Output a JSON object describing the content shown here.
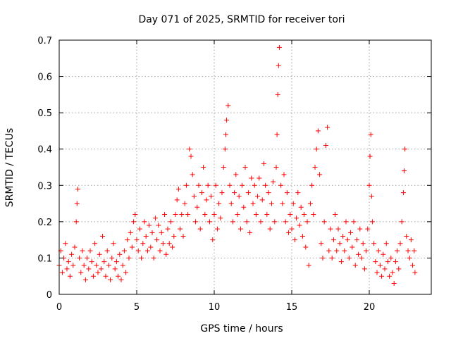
{
  "chart_data": {
    "type": "scatter",
    "title": "Day 071 of 2025, SRMTID for receiver tori",
    "xlabel": "GPS time / hours",
    "ylabel": "SRMTID / TECUs",
    "xlim": [
      0,
      24
    ],
    "ylim": [
      0,
      0.7
    ],
    "xticks": [
      0,
      5,
      10,
      15,
      20
    ],
    "yticks": [
      0,
      0.1,
      0.2,
      0.3,
      0.4,
      0.5,
      0.6,
      0.7
    ],
    "xtick_labels": [
      "0",
      "5",
      "10",
      "15",
      "20"
    ],
    "ytick_labels": [
      "0",
      "0.1",
      "0.2",
      "0.3",
      "0.4",
      "0.5",
      "0.6",
      "0.7"
    ],
    "grid": true,
    "marker": "+",
    "color": "#ff0000",
    "series": [
      {
        "name": "SRMTID",
        "points": [
          [
            0.0,
            0.08
          ],
          [
            0.1,
            0.12
          ],
          [
            0.2,
            0.06
          ],
          [
            0.3,
            0.1
          ],
          [
            0.4,
            0.14
          ],
          [
            0.5,
            0.07
          ],
          [
            0.6,
            0.09
          ],
          [
            0.7,
            0.05
          ],
          [
            0.8,
            0.11
          ],
          [
            0.9,
            0.08
          ],
          [
            1.0,
            0.13
          ],
          [
            1.1,
            0.2
          ],
          [
            1.15,
            0.25
          ],
          [
            1.2,
            0.29
          ],
          [
            1.3,
            0.1
          ],
          [
            1.4,
            0.06
          ],
          [
            1.5,
            0.12
          ],
          [
            1.6,
            0.08
          ],
          [
            1.7,
            0.04
          ],
          [
            1.8,
            0.1
          ],
          [
            1.9,
            0.07
          ],
          [
            2.0,
            0.12
          ],
          [
            2.1,
            0.09
          ],
          [
            2.2,
            0.05
          ],
          [
            2.3,
            0.14
          ],
          [
            2.4,
            0.08
          ],
          [
            2.5,
            0.06
          ],
          [
            2.6,
            0.11
          ],
          [
            2.7,
            0.07
          ],
          [
            2.8,
            0.16
          ],
          [
            2.9,
            0.09
          ],
          [
            3.0,
            0.05
          ],
          [
            3.1,
            0.12
          ],
          [
            3.2,
            0.08
          ],
          [
            3.3,
            0.04
          ],
          [
            3.4,
            0.1
          ],
          [
            3.5,
            0.14
          ],
          [
            3.6,
            0.07
          ],
          [
            3.7,
            0.09
          ],
          [
            3.8,
            0.05
          ],
          [
            3.9,
            0.11
          ],
          [
            4.0,
            0.04
          ],
          [
            4.1,
            0.08
          ],
          [
            4.2,
            0.12
          ],
          [
            4.3,
            0.06
          ],
          [
            4.4,
            0.15
          ],
          [
            4.5,
            0.1
          ],
          [
            4.6,
            0.17
          ],
          [
            4.7,
            0.13
          ],
          [
            4.8,
            0.2
          ],
          [
            4.9,
            0.22
          ],
          [
            5.0,
            0.15
          ],
          [
            5.1,
            0.12
          ],
          [
            5.2,
            0.18
          ],
          [
            5.3,
            0.1
          ],
          [
            5.4,
            0.14
          ],
          [
            5.5,
            0.2
          ],
          [
            5.6,
            0.16
          ],
          [
            5.7,
            0.12
          ],
          [
            5.8,
            0.19
          ],
          [
            5.9,
            0.13
          ],
          [
            6.0,
            0.17
          ],
          [
            6.1,
            0.1
          ],
          [
            6.2,
            0.21
          ],
          [
            6.3,
            0.15
          ],
          [
            6.4,
            0.19
          ],
          [
            6.5,
            0.12
          ],
          [
            6.6,
            0.17
          ],
          [
            6.7,
            0.14
          ],
          [
            6.8,
            0.22
          ],
          [
            6.9,
            0.11
          ],
          [
            7.0,
            0.18
          ],
          [
            7.1,
            0.14
          ],
          [
            7.2,
            0.2
          ],
          [
            7.3,
            0.13
          ],
          [
            7.4,
            0.16
          ],
          [
            7.5,
            0.22
          ],
          [
            7.6,
            0.26
          ],
          [
            7.7,
            0.29
          ],
          [
            7.8,
            0.18
          ],
          [
            7.9,
            0.22
          ],
          [
            8.0,
            0.16
          ],
          [
            8.1,
            0.25
          ],
          [
            8.2,
            0.3
          ],
          [
            8.3,
            0.22
          ],
          [
            8.4,
            0.4
          ],
          [
            8.5,
            0.38
          ],
          [
            8.6,
            0.33
          ],
          [
            8.7,
            0.27
          ],
          [
            8.8,
            0.2
          ],
          [
            8.9,
            0.24
          ],
          [
            9.0,
            0.3
          ],
          [
            9.1,
            0.18
          ],
          [
            9.2,
            0.28
          ],
          [
            9.3,
            0.35
          ],
          [
            9.4,
            0.22
          ],
          [
            9.5,
            0.26
          ],
          [
            9.6,
            0.3
          ],
          [
            9.7,
            0.2
          ],
          [
            9.8,
            0.27
          ],
          [
            9.9,
            0.15
          ],
          [
            10.0,
            0.22
          ],
          [
            10.1,
            0.3
          ],
          [
            10.2,
            0.18
          ],
          [
            10.3,
            0.25
          ],
          [
            10.4,
            0.21
          ],
          [
            10.5,
            0.28
          ],
          [
            10.6,
            0.35
          ],
          [
            10.7,
            0.4
          ],
          [
            10.75,
            0.44
          ],
          [
            10.8,
            0.48
          ],
          [
            10.9,
            0.52
          ],
          [
            11.0,
            0.3
          ],
          [
            11.1,
            0.25
          ],
          [
            11.2,
            0.2
          ],
          [
            11.3,
            0.28
          ],
          [
            11.4,
            0.33
          ],
          [
            11.5,
            0.22
          ],
          [
            11.6,
            0.27
          ],
          [
            11.7,
            0.18
          ],
          [
            11.8,
            0.3
          ],
          [
            11.9,
            0.24
          ],
          [
            12.0,
            0.35
          ],
          [
            12.1,
            0.2
          ],
          [
            12.2,
            0.28
          ],
          [
            12.3,
            0.17
          ],
          [
            12.4,
            0.32
          ],
          [
            12.5,
            0.25
          ],
          [
            12.6,
            0.3
          ],
          [
            12.7,
            0.22
          ],
          [
            12.8,
            0.27
          ],
          [
            12.9,
            0.32
          ],
          [
            13.0,
            0.2
          ],
          [
            13.1,
            0.26
          ],
          [
            13.2,
            0.36
          ],
          [
            13.3,
            0.3
          ],
          [
            13.4,
            0.22
          ],
          [
            13.5,
            0.28
          ],
          [
            13.6,
            0.18
          ],
          [
            13.7,
            0.25
          ],
          [
            13.8,
            0.31
          ],
          [
            13.9,
            0.2
          ],
          [
            14.0,
            0.35
          ],
          [
            14.05,
            0.44
          ],
          [
            14.1,
            0.55
          ],
          [
            14.15,
            0.63
          ],
          [
            14.2,
            0.68
          ],
          [
            14.3,
            0.3
          ],
          [
            14.4,
            0.25
          ],
          [
            14.5,
            0.33
          ],
          [
            14.6,
            0.2
          ],
          [
            14.7,
            0.28
          ],
          [
            14.8,
            0.17
          ],
          [
            14.9,
            0.22
          ],
          [
            15.0,
            0.18
          ],
          [
            15.1,
            0.25
          ],
          [
            15.2,
            0.15
          ],
          [
            15.3,
            0.21
          ],
          [
            15.4,
            0.28
          ],
          [
            15.5,
            0.19
          ],
          [
            15.6,
            0.24
          ],
          [
            15.7,
            0.16
          ],
          [
            15.8,
            0.22
          ],
          [
            15.9,
            0.13
          ],
          [
            16.0,
            0.2
          ],
          [
            16.1,
            0.08
          ],
          [
            16.2,
            0.25
          ],
          [
            16.3,
            0.3
          ],
          [
            16.4,
            0.22
          ],
          [
            16.5,
            0.35
          ],
          [
            16.6,
            0.4
          ],
          [
            16.7,
            0.45
          ],
          [
            16.8,
            0.33
          ],
          [
            16.9,
            0.14
          ],
          [
            17.0,
            0.1
          ],
          [
            17.1,
            0.2
          ],
          [
            17.2,
            0.41
          ],
          [
            17.3,
            0.46
          ],
          [
            17.4,
            0.12
          ],
          [
            17.5,
            0.18
          ],
          [
            17.6,
            0.1
          ],
          [
            17.7,
            0.15
          ],
          [
            17.8,
            0.22
          ],
          [
            17.9,
            0.12
          ],
          [
            18.0,
            0.18
          ],
          [
            18.1,
            0.14
          ],
          [
            18.2,
            0.09
          ],
          [
            18.3,
            0.16
          ],
          [
            18.4,
            0.12
          ],
          [
            18.5,
            0.2
          ],
          [
            18.6,
            0.15
          ],
          [
            18.7,
            0.1
          ],
          [
            18.8,
            0.17
          ],
          [
            18.9,
            0.13
          ],
          [
            19.0,
            0.2
          ],
          [
            19.1,
            0.08
          ],
          [
            19.2,
            0.15
          ],
          [
            19.3,
            0.11
          ],
          [
            19.4,
            0.18
          ],
          [
            19.5,
            0.1
          ],
          [
            19.6,
            0.14
          ],
          [
            19.7,
            0.07
          ],
          [
            19.8,
            0.12
          ],
          [
            19.9,
            0.18
          ],
          [
            20.0,
            0.3
          ],
          [
            20.05,
            0.38
          ],
          [
            20.1,
            0.44
          ],
          [
            20.15,
            0.27
          ],
          [
            20.2,
            0.2
          ],
          [
            20.3,
            0.14
          ],
          [
            20.4,
            0.09
          ],
          [
            20.5,
            0.06
          ],
          [
            20.6,
            0.12
          ],
          [
            20.7,
            0.08
          ],
          [
            20.8,
            0.05
          ],
          [
            20.9,
            0.11
          ],
          [
            21.0,
            0.07
          ],
          [
            21.1,
            0.14
          ],
          [
            21.2,
            0.09
          ],
          [
            21.3,
            0.05
          ],
          [
            21.4,
            0.1
          ],
          [
            21.5,
            0.06
          ],
          [
            21.6,
            0.03
          ],
          [
            21.7,
            0.09
          ],
          [
            21.8,
            0.12
          ],
          [
            21.9,
            0.07
          ],
          [
            22.0,
            0.14
          ],
          [
            22.1,
            0.2
          ],
          [
            22.2,
            0.28
          ],
          [
            22.25,
            0.34
          ],
          [
            22.3,
            0.4
          ],
          [
            22.4,
            0.16
          ],
          [
            22.5,
            0.12
          ],
          [
            22.6,
            0.1
          ],
          [
            22.7,
            0.15
          ],
          [
            22.8,
            0.08
          ],
          [
            22.9,
            0.12
          ],
          [
            22.95,
            0.06
          ]
        ]
      }
    ]
  }
}
